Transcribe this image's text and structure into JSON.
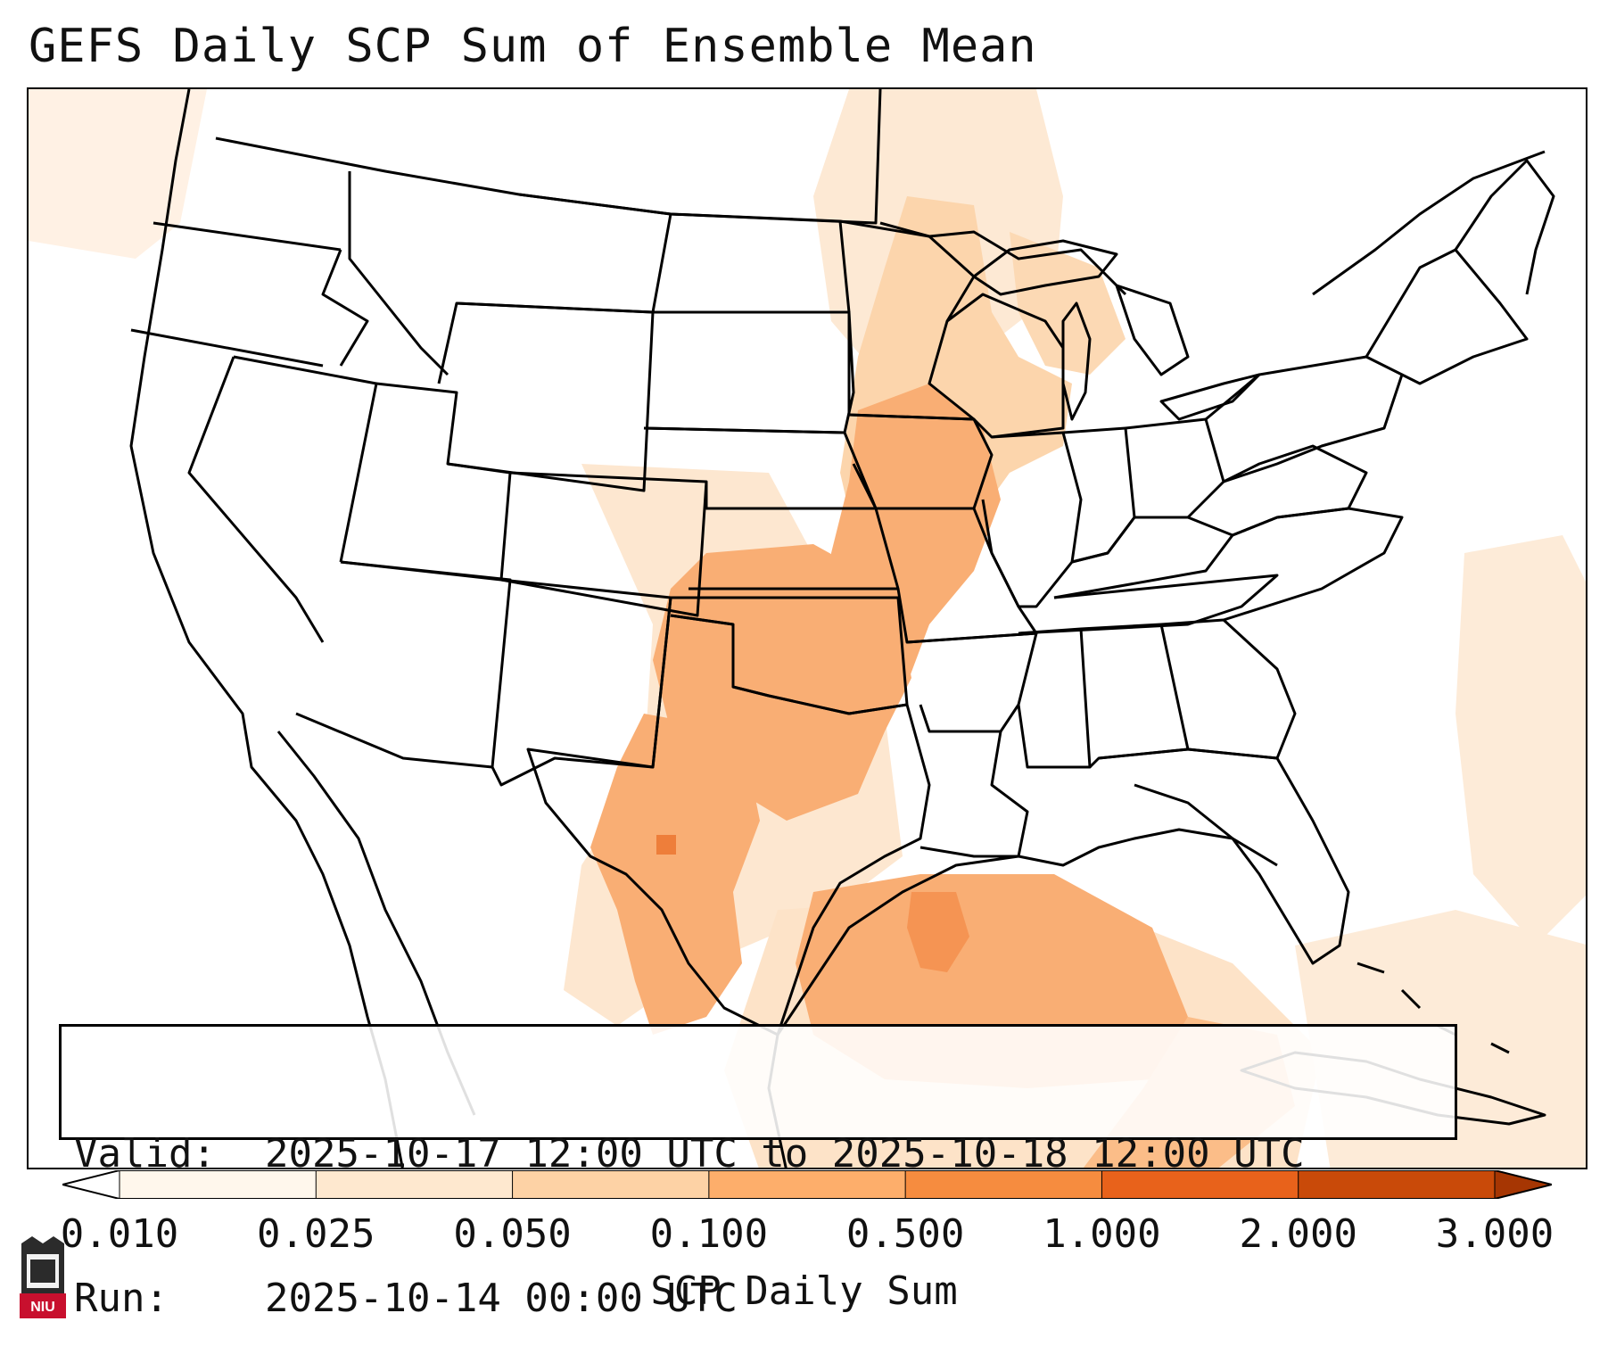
{
  "title": "GEFS Daily SCP Sum of Ensemble Mean",
  "info": {
    "valid_label": "Valid:",
    "valid_value": "2025-10-17 12:00 UTC to 2025-10-18 12:00 UTC",
    "run_label": "Run:",
    "run_value": "2025-10-14 00:00 UTC"
  },
  "colorbar": {
    "label": "SCP Daily Sum",
    "ticks": [
      "0.010",
      "0.025",
      "0.050",
      "0.100",
      "0.500",
      "1.000",
      "2.000",
      "3.000"
    ],
    "colors": [
      "#fff7ec",
      "#fee8cf",
      "#fdd2a5",
      "#fdae6b",
      "#f68c3f",
      "#e8621b",
      "#c94a09"
    ]
  },
  "logo_text": "NIU",
  "colors": {
    "light": "#fff0e0",
    "pale": "#fde0c2",
    "mid": "#fbc592",
    "strong": "#f9aa6a",
    "deep": "#ee7e3a"
  }
}
